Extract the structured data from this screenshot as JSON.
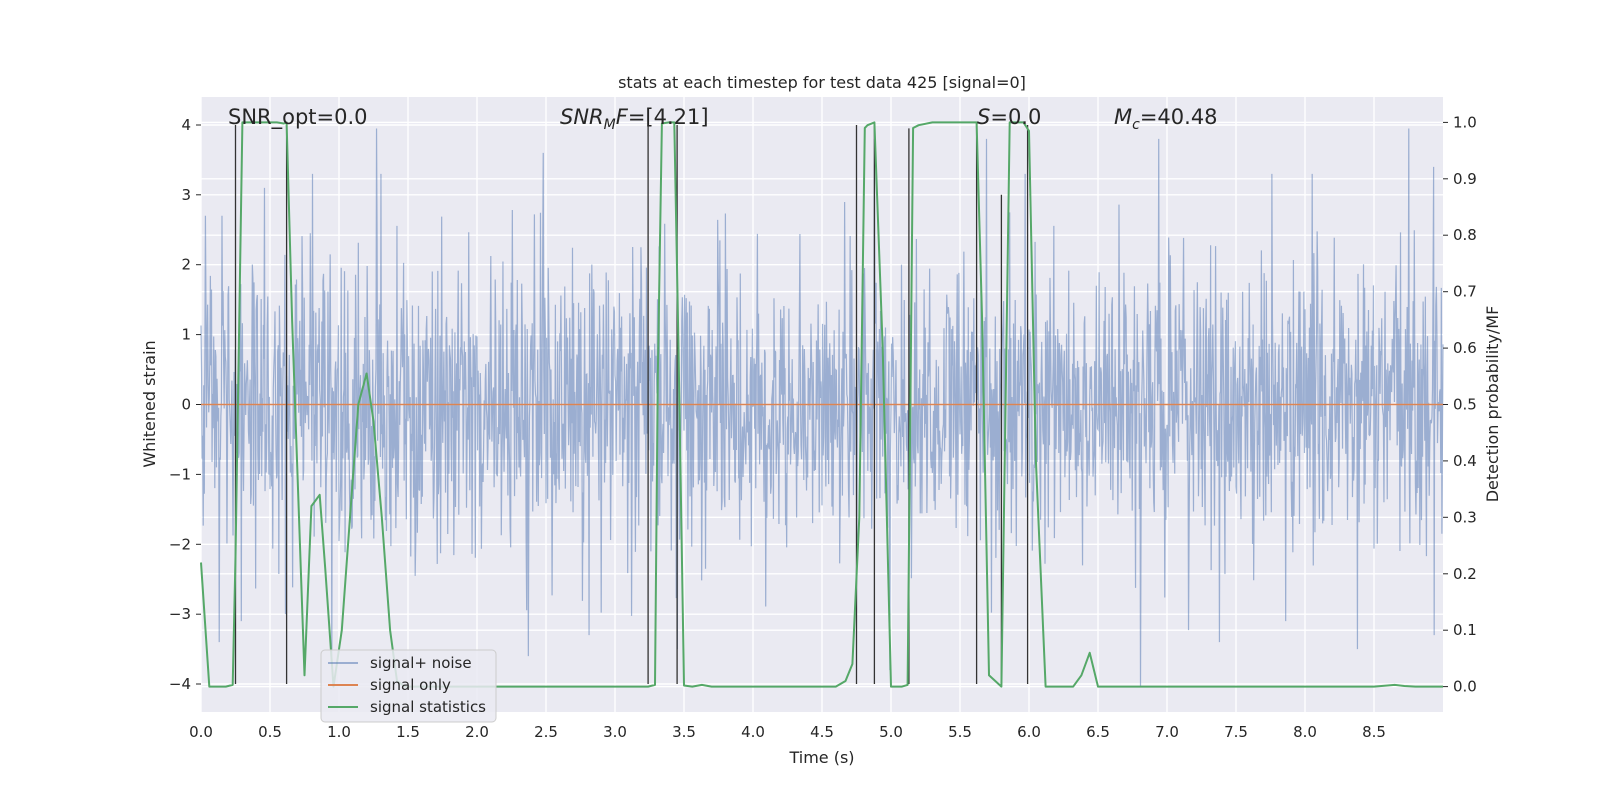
{
  "chart_data": {
    "type": "line",
    "title": "stats at each timestep for test data 425 [signal=0]",
    "xlabel": "Time (s)",
    "ylabel": "Whitened strain",
    "y2label": "Detection probability/MF",
    "xlim": [
      0.0,
      9.0
    ],
    "ylim": [
      -4.4,
      4.4
    ],
    "y2lim": [
      -0.045,
      1.045
    ],
    "x_ticks": [
      0.0,
      0.5,
      1.0,
      1.5,
      2.0,
      2.5,
      3.0,
      3.5,
      4.0,
      4.5,
      5.0,
      5.5,
      6.0,
      6.5,
      7.0,
      7.5,
      8.0,
      8.5
    ],
    "x_tick_labels": [
      "0.0",
      "0.5",
      "1.0",
      "1.5",
      "2.0",
      "2.5",
      "3.0",
      "3.5",
      "4.0",
      "4.5",
      "5.0",
      "5.5",
      "6.0",
      "6.5",
      "7.0",
      "7.5",
      "8.0",
      "8.5"
    ],
    "y_ticks": [
      4,
      3,
      2,
      1,
      0,
      -1,
      -2,
      -3,
      -4
    ],
    "y_tick_labels": [
      "4",
      "3",
      "2",
      "1",
      "0",
      "−1",
      "−2",
      "−3",
      "−4"
    ],
    "y2_ticks": [
      1.0,
      0.9,
      0.8,
      0.7,
      0.6,
      0.5,
      0.4,
      0.3,
      0.2,
      0.1,
      0.0
    ],
    "y2_tick_labels": [
      "1.0",
      "0.9",
      "0.8",
      "0.7",
      "0.6",
      "0.5",
      "0.4",
      "0.3",
      "0.2",
      "0.1",
      "0.0"
    ],
    "grid": true,
    "legend_position": "bottom-left",
    "legend": [
      "signal+ noise",
      "signal only",
      "signal statistics"
    ],
    "annotations": [
      {
        "id": "snr_opt",
        "text": "SNR_opt=0.0",
        "x": 0.2,
        "y": 4.0
      },
      {
        "id": "snr_mf",
        "text": "=[4.21]",
        "x": 2.6,
        "y": 4.0,
        "math": {
          "base": "SNR",
          "sub": "M",
          "tail": "F"
        }
      },
      {
        "id": "s",
        "text": "=0.0",
        "x": 5.6,
        "y": 4.0,
        "math": {
          "base": "S",
          "sub": "",
          "tail": ""
        }
      },
      {
        "id": "mc",
        "text": "=40.48",
        "x": 6.6,
        "y": 4.0,
        "math": {
          "base": "M",
          "sub": "c",
          "tail": ""
        }
      }
    ],
    "series": [
      {
        "name": "signal+ noise",
        "color": "#4c72b0",
        "alpha": 0.5,
        "kind": "noise",
        "sample_step_s": 0.004,
        "envelope_typical": 2.0,
        "spikes": [
          {
            "x": 0.03,
            "y": 2.7
          },
          {
            "x": 0.13,
            "y": -3.4
          },
          {
            "x": 0.15,
            "y": 2.7
          },
          {
            "x": 0.29,
            "y": -3.1
          },
          {
            "x": 0.46,
            "y": 3.1
          },
          {
            "x": 0.61,
            "y": -3.0
          },
          {
            "x": 0.95,
            "y": -3.6
          },
          {
            "x": 1.27,
            "y": 3.95
          },
          {
            "x": 2.37,
            "y": -3.6
          },
          {
            "x": 2.48,
            "y": 3.6
          },
          {
            "x": 3.45,
            "y": -3.5
          },
          {
            "x": 4.88,
            "y": 3.8
          },
          {
            "x": 4.99,
            "y": -3.8
          },
          {
            "x": 5.69,
            "y": 3.8
          },
          {
            "x": 5.97,
            "y": 3.3
          },
          {
            "x": 6.81,
            "y": -4.05
          },
          {
            "x": 6.94,
            "y": 3.8
          },
          {
            "x": 7.38,
            "y": -3.4
          },
          {
            "x": 7.86,
            "y": -3.1
          },
          {
            "x": 8.05,
            "y": 3.3
          },
          {
            "x": 8.38,
            "y": -3.5
          },
          {
            "x": 8.75,
            "y": 3.95
          },
          {
            "x": 8.93,
            "y": 3.4
          }
        ]
      },
      {
        "name": "signal only",
        "color": "#dd8452",
        "x": [
          0.0,
          9.0
        ],
        "y": [
          0.0,
          0.0
        ]
      },
      {
        "name": "signal statistics",
        "color": "#55a868",
        "axis": "right",
        "x": [
          0.0,
          0.06,
          0.12,
          0.18,
          0.23,
          0.25,
          0.3,
          0.36,
          0.42,
          0.48,
          0.55,
          0.6,
          0.62,
          0.66,
          0.71,
          0.75,
          0.8,
          0.86,
          0.9,
          0.96,
          1.02,
          1.08,
          1.14,
          1.2,
          1.25,
          1.31,
          1.37,
          1.42,
          1.48,
          1.55,
          1.61,
          1.7,
          2.0,
          2.5,
          3.0,
          3.24,
          3.29,
          3.31,
          3.34,
          3.39,
          3.43,
          3.46,
          3.5,
          3.56,
          3.63,
          3.7,
          3.74,
          3.8,
          4.0,
          4.3,
          4.6,
          4.67,
          4.72,
          4.77,
          4.81,
          4.83,
          4.88,
          4.94,
          5.0,
          5.08,
          5.12,
          5.16,
          5.2,
          5.3,
          5.5,
          5.62,
          5.66,
          5.71,
          5.8,
          5.86,
          5.9,
          5.96,
          6.0,
          6.05,
          6.12,
          6.22,
          6.32,
          6.38,
          6.44,
          6.5,
          6.6,
          7.0,
          7.5,
          8.0,
          8.5,
          8.65,
          8.72,
          8.8,
          9.0
        ],
        "y": [
          0.22,
          0.0,
          0.0,
          0.0,
          0.003,
          0.23,
          1.0,
          1.0,
          1.0,
          1.0,
          1.0,
          0.998,
          1.0,
          0.65,
          0.3,
          0.02,
          0.32,
          0.34,
          0.21,
          0.0,
          0.1,
          0.3,
          0.5,
          0.555,
          0.47,
          0.3,
          0.1,
          0.01,
          0.0,
          0.0,
          0.0,
          0.0,
          0.0,
          0.0,
          0.0,
          0.0,
          0.003,
          0.55,
          0.998,
          1.0,
          1.0,
          0.6,
          0.002,
          0.0,
          0.003,
          0.0,
          0.0,
          0.0,
          0.0,
          0.0,
          0.0,
          0.01,
          0.04,
          0.3,
          0.99,
          0.995,
          1.0,
          0.6,
          0.0,
          0.0,
          0.003,
          0.99,
          0.995,
          1.0,
          1.0,
          1.0,
          0.65,
          0.02,
          0.0,
          1.0,
          1.0,
          1.0,
          0.985,
          0.4,
          0.0,
          0.0,
          0.0,
          0.02,
          0.06,
          0.0,
          0.0,
          0.0,
          0.0,
          0.0,
          0.0,
          0.003,
          0.001,
          0.0,
          0.0
        ]
      }
    ],
    "event_markers": {
      "color": "#333333",
      "x": [
        0.25,
        0.62,
        3.24,
        3.45,
        4.75,
        4.88,
        5.13,
        5.62,
        5.8,
        5.99
      ],
      "y_top": [
        4.0,
        4.0,
        4.0,
        4.0,
        4.0,
        4.0,
        3.95,
        4.0,
        3.0,
        4.0
      ]
    }
  }
}
